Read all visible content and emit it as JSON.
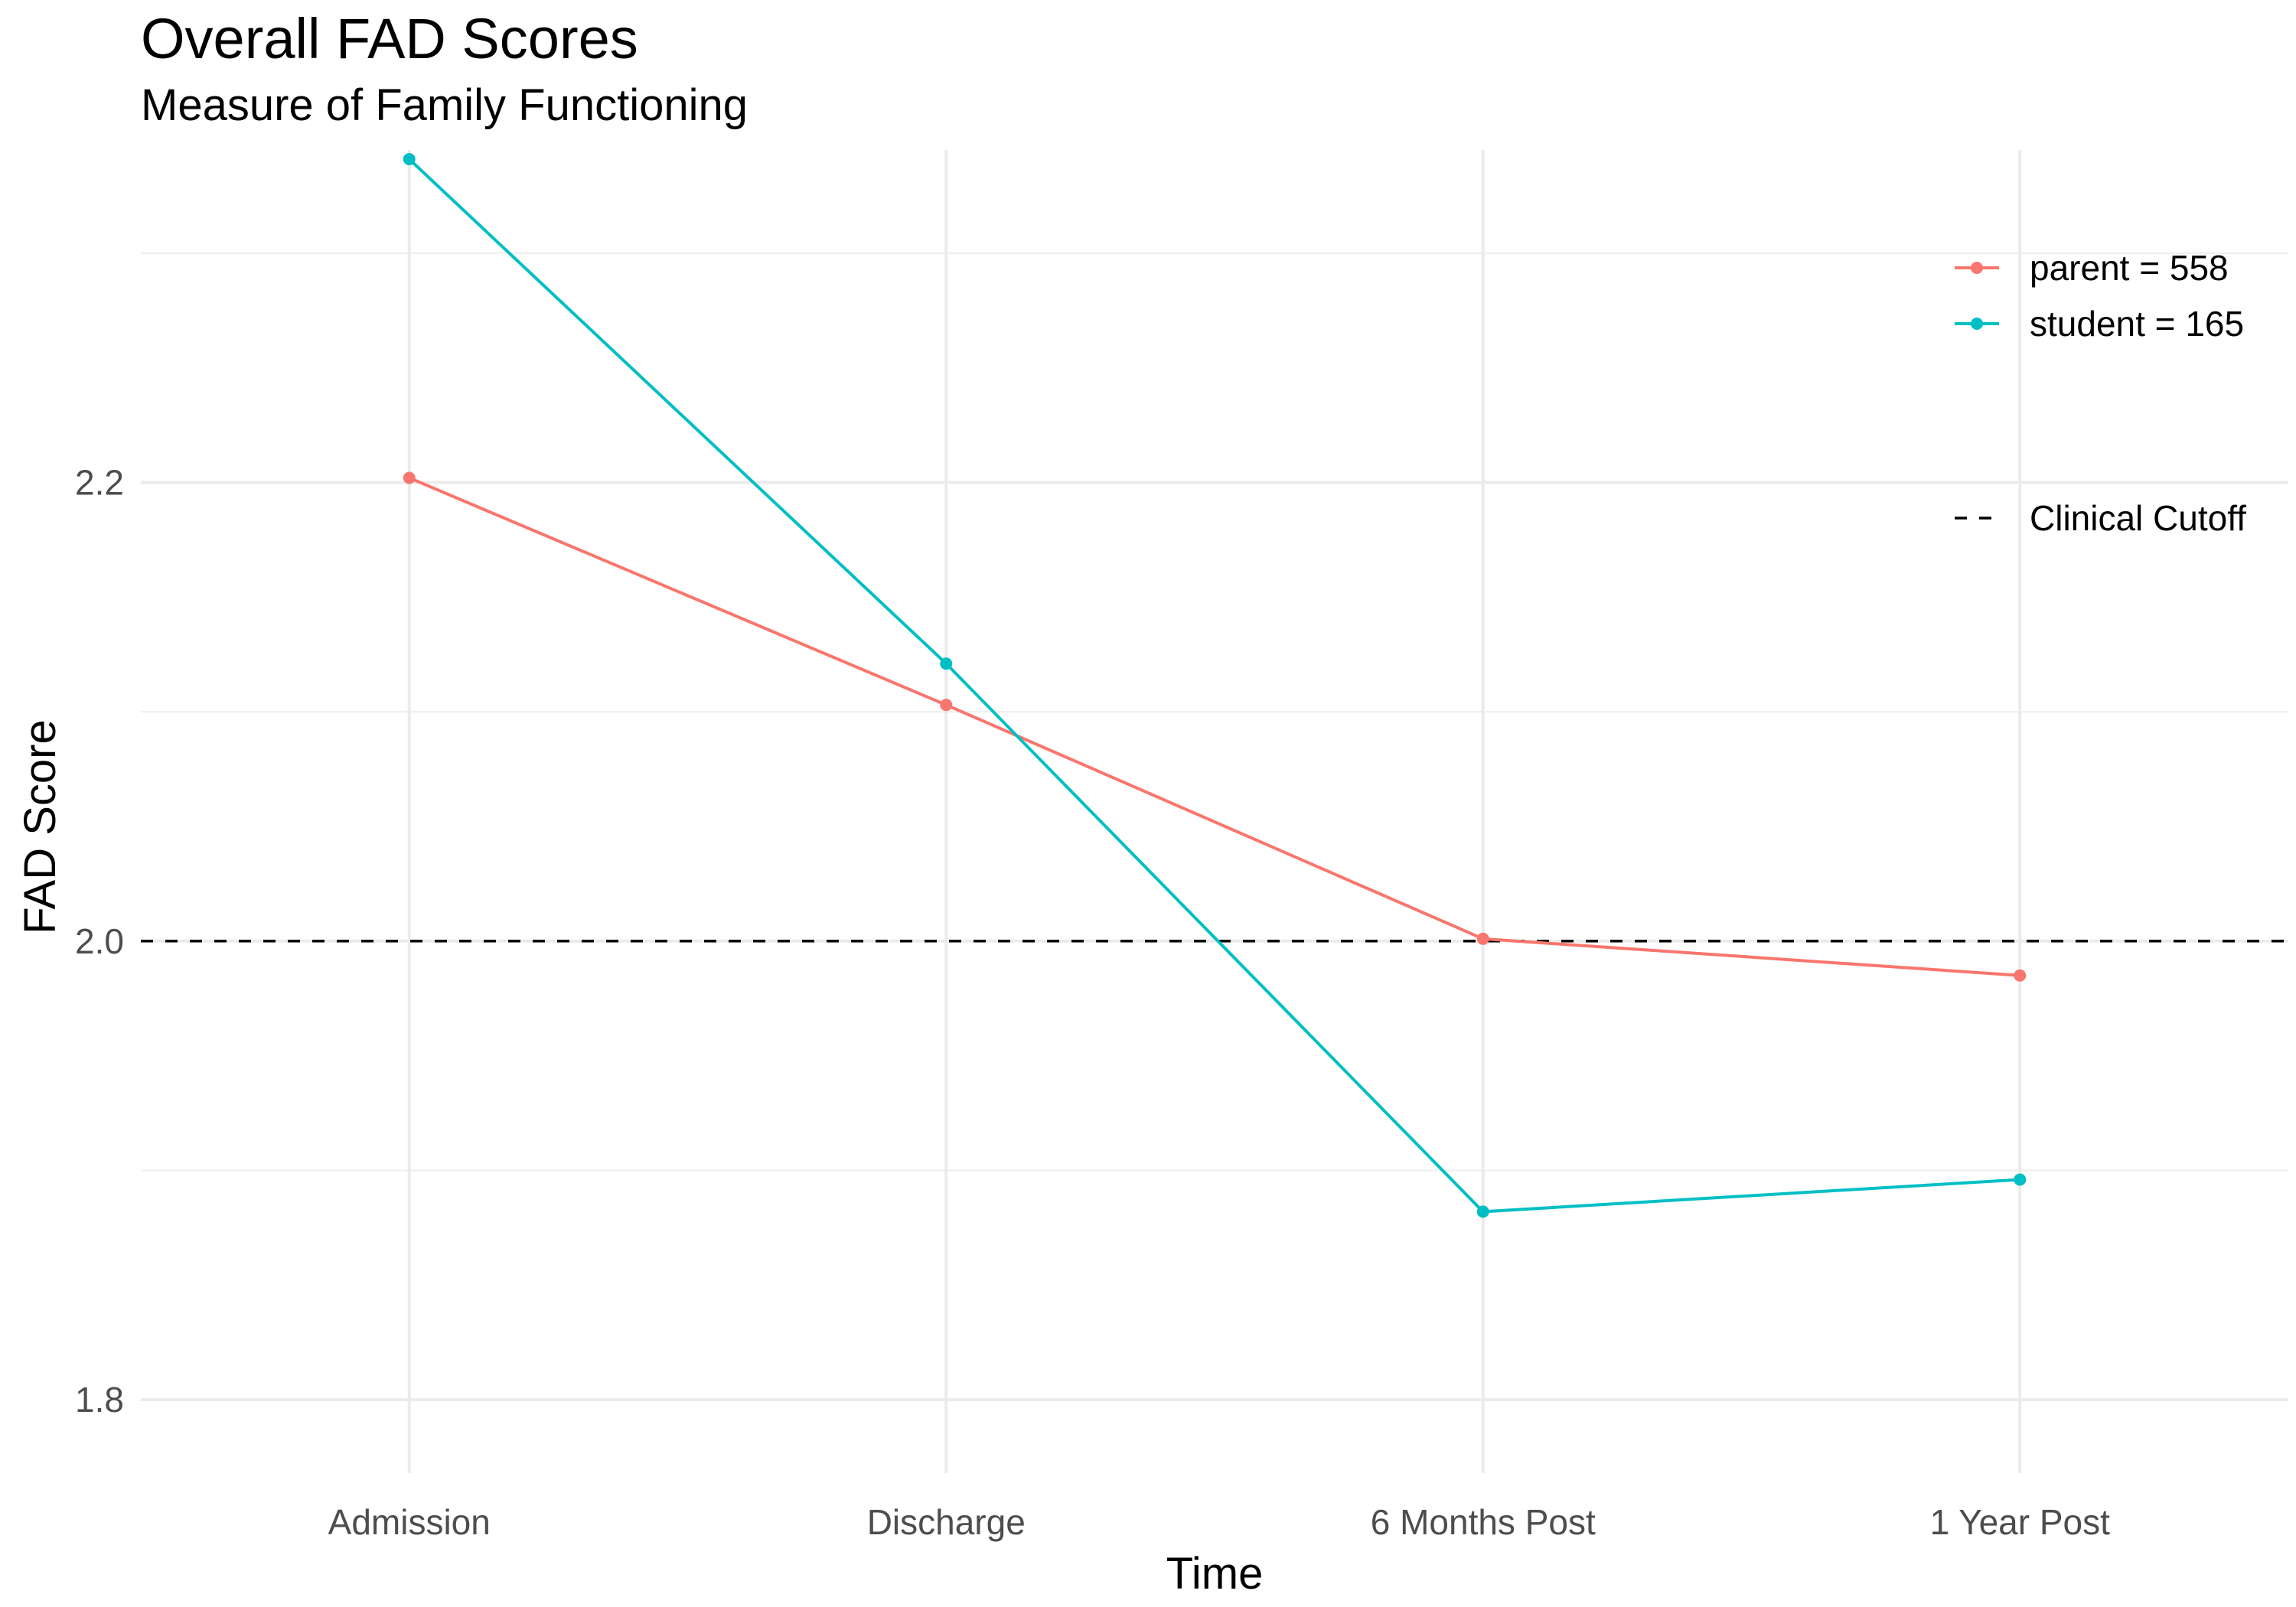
{
  "chart_data": {
    "type": "line",
    "title": "Overall FAD Scores",
    "subtitle": "Measure of Family Functioning",
    "xlabel": "Time",
    "ylabel": "FAD Score",
    "categories": [
      "Admission",
      "Discharge",
      "6 Months Post",
      "1 Year Post"
    ],
    "ylim": [
      1.768,
      2.345
    ],
    "yticks": [
      1.8,
      2.0,
      2.2
    ],
    "ytick_labels": [
      "1.8",
      "2.0",
      "2.2"
    ],
    "y_minor_gridlines": [
      1.9,
      2.1,
      2.3
    ],
    "grid": true,
    "series": [
      {
        "name": "parent = 558",
        "color": "#F8766D",
        "values": [
          2.202,
          2.103,
          2.001,
          1.985
        ]
      },
      {
        "name": "student = 165",
        "color": "#00BFC4",
        "values": [
          2.341,
          2.121,
          1.882,
          1.896
        ]
      }
    ],
    "reference_lines": [
      {
        "name": "Clinical Cutoff",
        "y": 2.0,
        "style": "dashed",
        "color": "#000000"
      }
    ],
    "legend_position": "top-right"
  }
}
